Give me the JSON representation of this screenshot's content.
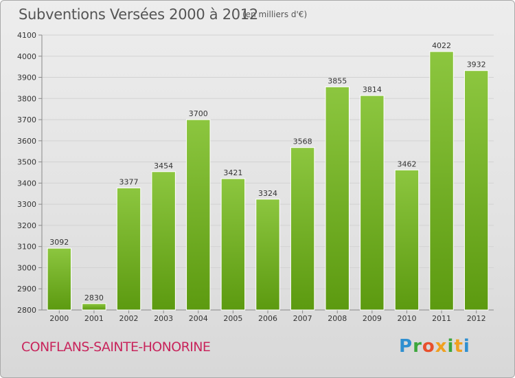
{
  "header": {
    "title": "Subventions Versées 2000 à 2012",
    "unit_note": "(en milliers d'€)"
  },
  "footer": {
    "commune": "CONFLANS-SAINTE-HONORINE",
    "logo_text": "Proxiti"
  },
  "colors": {
    "bar_light": "#8cc63f",
    "bar_dark": "#5c9a10",
    "commune_text": "#c8255c",
    "grid": "#d2d2d2"
  },
  "chart_data": {
    "type": "bar",
    "title": "Subventions Versées 2000 à 2012",
    "subtitle": "(en milliers d'€)",
    "xlabel": "",
    "ylabel": "",
    "categories": [
      "2000",
      "2001",
      "2002",
      "2003",
      "2004",
      "2005",
      "2006",
      "2007",
      "2008",
      "2009",
      "2010",
      "2011",
      "2012"
    ],
    "values": [
      3092,
      2830,
      3377,
      3454,
      3700,
      3421,
      3324,
      3568,
      3855,
      3814,
      3462,
      4022,
      3932
    ],
    "ylim": [
      2800,
      4100
    ],
    "yticks": [
      2800,
      2900,
      3000,
      3100,
      3200,
      3300,
      3400,
      3500,
      3600,
      3700,
      3800,
      3900,
      4000,
      4100
    ],
    "grid": true,
    "legend": "none"
  }
}
